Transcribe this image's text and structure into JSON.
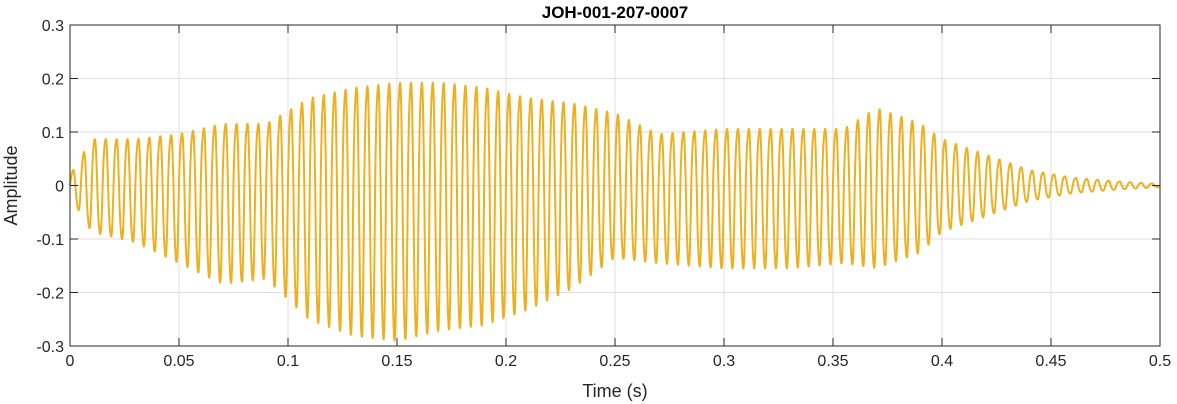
{
  "chart_data": {
    "type": "line",
    "title": "JOH-001-207-0007",
    "xlabel": "Time (s)",
    "ylabel": "Amplitude",
    "xlim": [
      0,
      0.5
    ],
    "ylim": [
      -0.3,
      0.3
    ],
    "xticks": [
      0,
      0.05,
      0.1,
      0.15,
      0.2,
      0.25,
      0.3,
      0.35,
      0.4,
      0.45,
      0.5
    ],
    "xtick_labels": [
      "0",
      "0.05",
      "0.1",
      "0.15",
      "0.2",
      "0.25",
      "0.3",
      "0.35",
      "0.4",
      "0.45",
      "0.5"
    ],
    "yticks": [
      -0.3,
      -0.2,
      -0.1,
      0,
      0.1,
      0.2,
      0.3
    ],
    "ytick_labels": [
      "-0.3",
      "-0.2",
      "-0.1",
      "0",
      "0.1",
      "0.2",
      "0.3"
    ],
    "grid": true,
    "color": "#EDB120",
    "series": [
      {
        "waveform": "oscillating",
        "cycle_period_s": 0.005,
        "envelope_times": [
          0,
          0.01,
          0.03,
          0.05,
          0.07,
          0.09,
          0.11,
          0.13,
          0.15,
          0.17,
          0.19,
          0.21,
          0.23,
          0.25,
          0.27,
          0.3,
          0.33,
          0.355,
          0.37,
          0.39,
          0.4,
          0.42,
          0.44,
          0.46,
          0.48,
          0.5
        ],
        "envelope_pos": [
          0.02,
          0.09,
          0.09,
          0.1,
          0.12,
          0.12,
          0.17,
          0.19,
          0.2,
          0.2,
          0.19,
          0.17,
          0.16,
          0.14,
          0.1,
          0.11,
          0.11,
          0.11,
          0.15,
          0.12,
          0.09,
          0.06,
          0.03,
          0.015,
          0.008,
          0.003
        ],
        "envelope_neg": [
          -0.02,
          -0.09,
          -0.11,
          -0.15,
          -0.19,
          -0.18,
          -0.26,
          -0.29,
          -0.3,
          -0.28,
          -0.27,
          -0.24,
          -0.2,
          -0.14,
          -0.15,
          -0.16,
          -0.16,
          -0.15,
          -0.16,
          -0.13,
          -0.09,
          -0.06,
          -0.03,
          -0.015,
          -0.008,
          -0.003
        ]
      }
    ]
  }
}
